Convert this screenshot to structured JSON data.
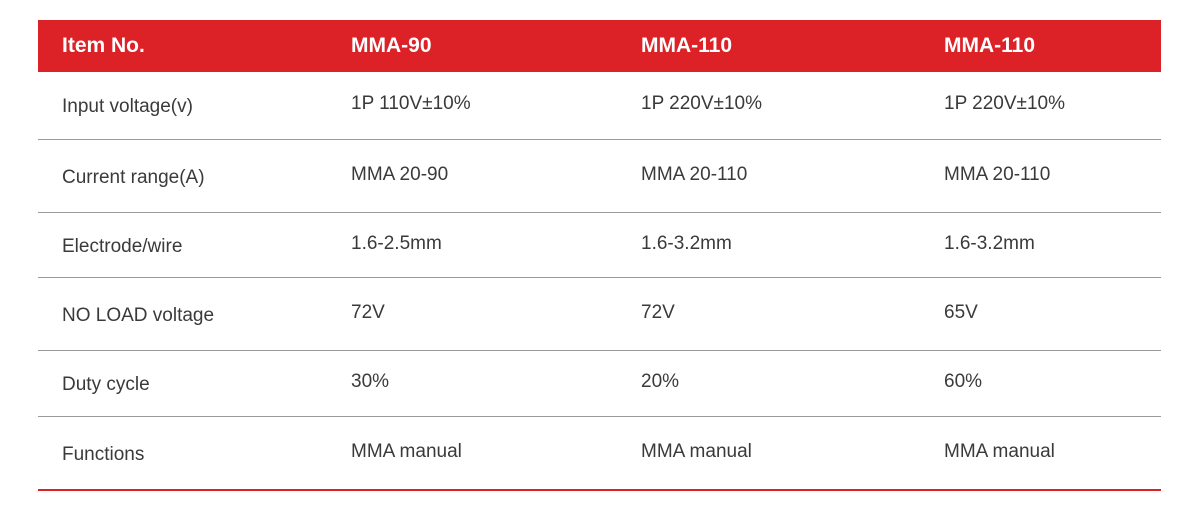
{
  "table": {
    "header": [
      "Item No.",
      "MMA-90",
      "MMA-110",
      "MMA-110"
    ],
    "rows": [
      {
        "label": "Input voltage(v)",
        "values": [
          "1P 110V±10%",
          "1P 220V±10%",
          "1P 220V±10%"
        ]
      },
      {
        "label": "Current range(A)",
        "values": [
          "MMA 20-90",
          "MMA 20-110",
          "MMA 20-110"
        ]
      },
      {
        "label": "Electrode/wire",
        "values": [
          "1.6-2.5mm",
          "1.6-3.2mm",
          "1.6-3.2mm"
        ]
      },
      {
        "label": "NO LOAD voltage",
        "values": [
          "72V",
          "72V",
          "65V"
        ]
      },
      {
        "label": "Duty cycle",
        "values": [
          "30%",
          "20%",
          "60%"
        ]
      },
      {
        "label": "Functions",
        "values": [
          "MMA manual",
          "MMA manual",
          "MMA manual"
        ]
      }
    ]
  },
  "colors": {
    "header_background": "#dc2127",
    "header_text": "#ffffff",
    "divider": "#9a9a9a",
    "bottom_rule": "#dc2127"
  }
}
